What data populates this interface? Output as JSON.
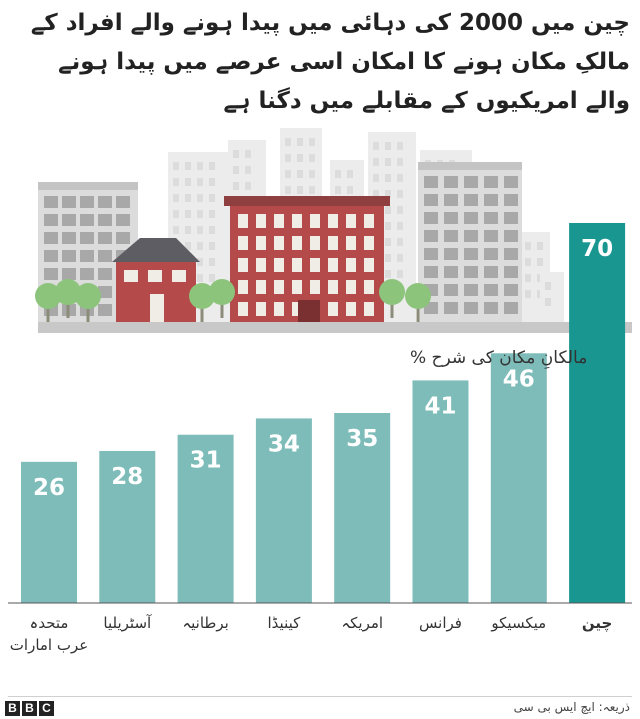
{
  "title": "چین میں 2000 کی دہائی میں پیدا ہونے والے افراد کے مالکِ مکان ہونے کا امکان اسی عرصے میں پیدا ہونے والے امریکیوں کے مقابلے میں دگنا ہے",
  "source": "ذریعہ: ایچ ایس بی سی",
  "brand": [
    "B",
    "B",
    "C"
  ],
  "colors": {
    "bar": "#7ebcb9",
    "highlight": "#1a9690",
    "value_text": "#ffffff",
    "label_text": "#333333"
  },
  "chart_data": {
    "type": "bar",
    "title": "چین میں 2000 کی دہائی میں پیدا ہونے والے افراد کے مالکِ مکان ہونے کا امکان اسی عرصے میں پیدا ہونے والے امریکیوں کے مقابلے میں دگنا ہے",
    "ylabel": "مالکانِ مکان کی شرح %",
    "categories": [
      "متحدہ\nعرب امارات",
      "آسٹریلیا",
      "برطانیہ",
      "کینیڈا",
      "امریکہ",
      "فرانس",
      "میکسیکو",
      "چین"
    ],
    "values": [
      26,
      28,
      31,
      34,
      35,
      41,
      46,
      70
    ],
    "highlight": "چین",
    "ylim": [
      0,
      70
    ],
    "grid": false,
    "legend": "none"
  }
}
